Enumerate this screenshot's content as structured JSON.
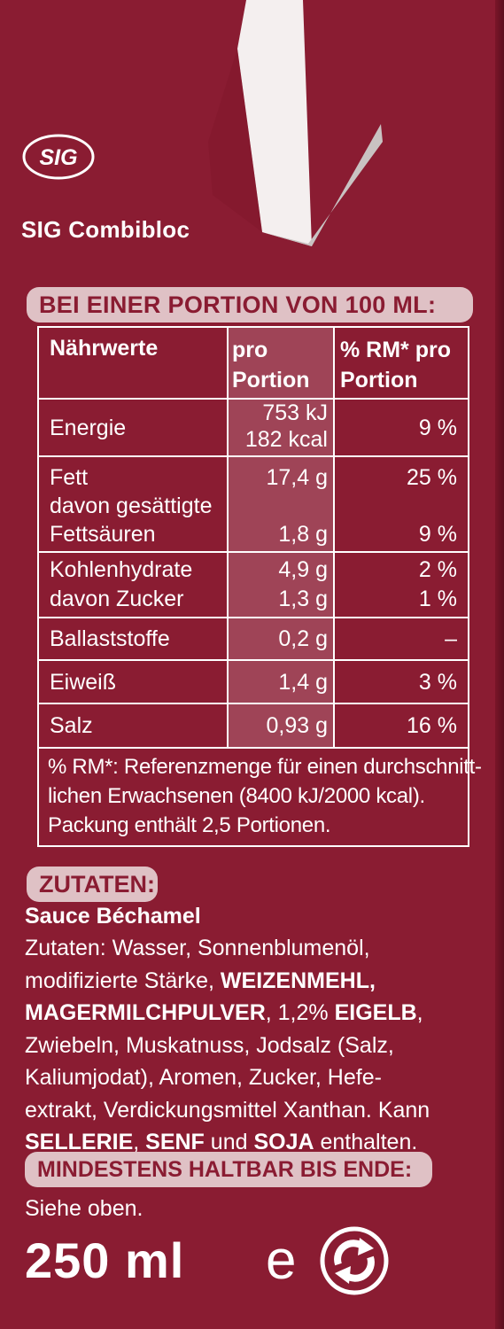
{
  "brand": {
    "logo_text": "SIG",
    "name": "SIG Combibloc"
  },
  "colors": {
    "background": "#8a1c32",
    "pill": "#dfc1c5",
    "text": "#ffffff"
  },
  "portion_heading": "BEI EINER PORTION VON 100 ML:",
  "nutrition": {
    "headers": {
      "name": "Nährwerte",
      "per_portion_1": "pro",
      "per_portion_2": "Portion",
      "rm_1": "% RM* pro",
      "rm_2": "Portion"
    },
    "energie": {
      "label": "Energie",
      "kj": "753 kJ",
      "kcal": "182 kcal",
      "rm": "9 %"
    },
    "fett": {
      "label": "Fett",
      "value": "17,4 g",
      "rm": "25 %"
    },
    "gesaettigte": {
      "label_1": "davon gesättigte",
      "label_2": "Fettsäuren",
      "value": "1,8 g",
      "rm": "9 %"
    },
    "kohlenhydrate": {
      "label": "Kohlenhydrate",
      "value": "4,9 g",
      "rm": "2 %"
    },
    "zucker": {
      "label": "davon Zucker",
      "value": "1,3 g",
      "rm": "1 %"
    },
    "ballaststoffe": {
      "label": "Ballaststoffe",
      "value": "0,2 g",
      "rm": "–"
    },
    "eiweiss": {
      "label": "Eiweiß",
      "value": "1,4 g",
      "rm": "3 %"
    },
    "salz": {
      "label": "Salz",
      "value": "0,93 g",
      "rm": "16 %"
    },
    "footnote": [
      "% RM*: Referenzmenge für einen durchschnitt-",
      "lichen  Erwachsenen (8400 kJ/2000 kcal).",
      "Packung enthält 2,5 Portionen."
    ]
  },
  "ingredients": {
    "heading": "ZUTATEN:",
    "product": "Sauce Béchamel",
    "lines": [
      [
        {
          "t": "Zutaten: Wasser, Sonnenblumenöl,",
          "b": false
        }
      ],
      [
        {
          "t": "modifizierte Stärke, ",
          "b": false
        },
        {
          "t": "WEIZENMEHL,",
          "b": true
        }
      ],
      [
        {
          "t": "MAGERMILCHPULVER",
          "b": true
        },
        {
          "t": ", 1,2% ",
          "b": false
        },
        {
          "t": "EIGELB",
          "b": true
        },
        {
          "t": ",",
          "b": false
        }
      ],
      [
        {
          "t": "Zwiebeln, Muskatnuss, Jodsalz (Salz,",
          "b": false
        }
      ],
      [
        {
          "t": "Kaliumjodat), Aromen, Zucker, Hefe-",
          "b": false
        }
      ],
      [
        {
          "t": "extrakt, Verdickungsmittel Xanthan. Kann",
          "b": false
        }
      ],
      [
        {
          "t": "SELLERIE",
          "b": true
        },
        {
          "t": ", ",
          "b": false
        },
        {
          "t": "SENF",
          "b": true
        },
        {
          "t": " und ",
          "b": false
        },
        {
          "t": "SOJA",
          "b": true
        },
        {
          "t": " enthalten.",
          "b": false
        }
      ]
    ]
  },
  "best_before": {
    "heading": "MINDESTENS HALTBAR BIS ENDE:",
    "text": "Siehe oben."
  },
  "volume": "250 ml",
  "estimated_mark": "e",
  "icons": {
    "sig_logo": "sig-logo-icon",
    "recycle": "recycle-arrows-icon",
    "estimated": "e-mark-icon"
  }
}
